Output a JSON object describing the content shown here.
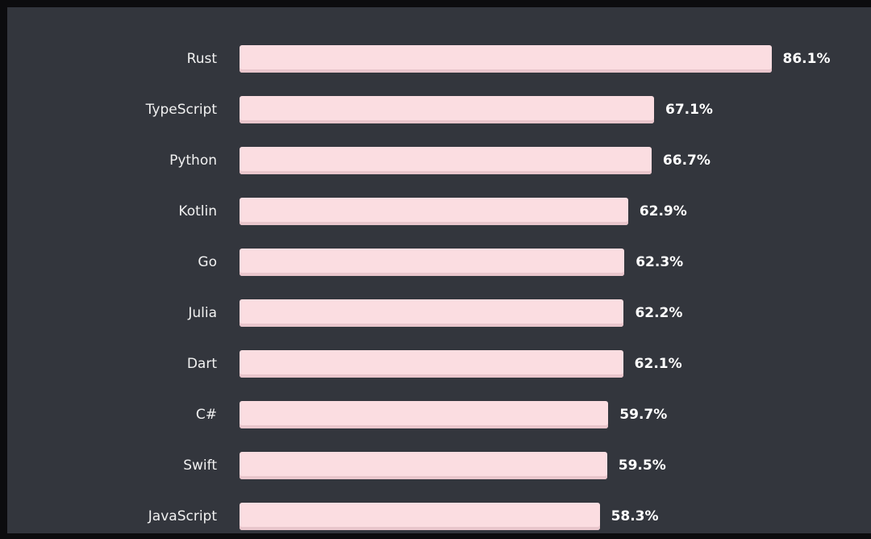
{
  "theme": {
    "outer_background": "#0c0c0e",
    "panel_background": "#33363d",
    "bar_fill": "#fbdde1",
    "bar_bottom_edge": "#e9c6cc",
    "label_text_color": "#f1f1f1",
    "value_text_color": "#ffffff"
  },
  "chart_data": {
    "type": "bar",
    "orientation": "horizontal",
    "title": "",
    "xlabel": "",
    "ylabel": "",
    "categories": [
      "Rust",
      "TypeScript",
      "Python",
      "Kotlin",
      "Go",
      "Julia",
      "Dart",
      "C#",
      "Swift",
      "JavaScript"
    ],
    "values": [
      86.1,
      67.1,
      66.7,
      62.9,
      62.3,
      62.2,
      62.1,
      59.7,
      59.5,
      58.3
    ],
    "value_labels": [
      "86.1%",
      "67.1%",
      "66.7%",
      "62.9%",
      "62.3%",
      "62.2%",
      "62.1%",
      "59.7%",
      "59.5%",
      "58.3%"
    ],
    "value_format": "percent",
    "xlim": [
      0,
      100
    ],
    "grid": false,
    "legend": false
  }
}
